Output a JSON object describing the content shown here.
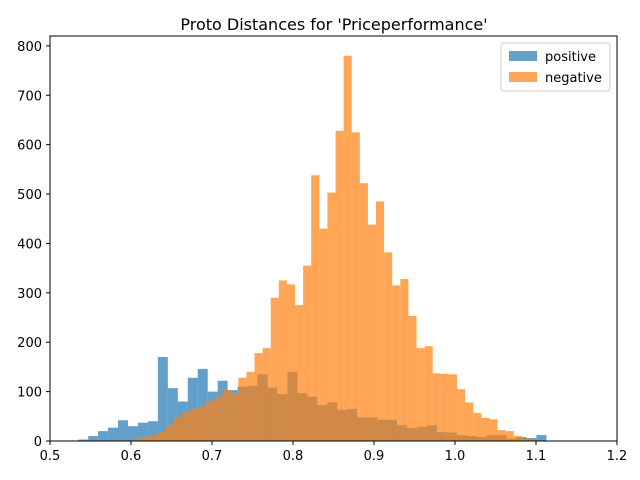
{
  "chart_data": {
    "type": "bar",
    "title": "Proto Distances for 'Priceperformance'",
    "xlabel": "",
    "ylabel": "",
    "xlim": [
      0.5,
      1.2
    ],
    "ylim": [
      0,
      820
    ],
    "xticks": [
      0.5,
      0.6,
      0.7,
      0.8,
      0.9,
      1.0,
      1.1,
      1.2
    ],
    "xtick_labels": [
      "0.5",
      "0.6",
      "0.7",
      "0.8",
      "0.9",
      "1.0",
      "1.1",
      "1.2"
    ],
    "yticks": [
      0,
      100,
      200,
      300,
      400,
      500,
      600,
      700,
      800
    ],
    "ytick_labels": [
      "0",
      "100",
      "200",
      "300",
      "400",
      "500",
      "600",
      "700",
      "800"
    ],
    "grid": false,
    "legend_position": "top-right",
    "series": [
      {
        "name": "positive",
        "color": "#1f77b4",
        "opacity": 0.7,
        "bin_start": 0.5225,
        "bin_width": 0.0123,
        "values": [
          0,
          3,
          10,
          20,
          27,
          42,
          30,
          37,
          40,
          170,
          107,
          80,
          128,
          146,
          100,
          122,
          103,
          110,
          112,
          135,
          108,
          95,
          140,
          97,
          90,
          73,
          78,
          63,
          65,
          48,
          48,
          43,
          43,
          32,
          26,
          29,
          32,
          18,
          17,
          12,
          10,
          8,
          12,
          12,
          5,
          8,
          6,
          12,
          0,
          0,
          0,
          0,
          0,
          0,
          0,
          0,
          0
        ]
      },
      {
        "name": "negative",
        "color": "#ff7f0e",
        "opacity": 0.7,
        "bin_start": 0.6025,
        "bin_width": 0.01,
        "values": [
          5,
          8,
          12,
          18,
          32,
          48,
          58,
          65,
          70,
          80,
          88,
          103,
          96,
          128,
          140,
          178,
          188,
          290,
          325,
          317,
          275,
          355,
          538,
          430,
          503,
          628,
          780,
          625,
          522,
          438,
          485,
          382,
          315,
          328,
          253,
          188,
          192,
          137,
          136,
          135,
          105,
          78,
          57,
          47,
          44,
          22,
          20,
          10,
          5,
          3,
          0
        ]
      }
    ]
  }
}
